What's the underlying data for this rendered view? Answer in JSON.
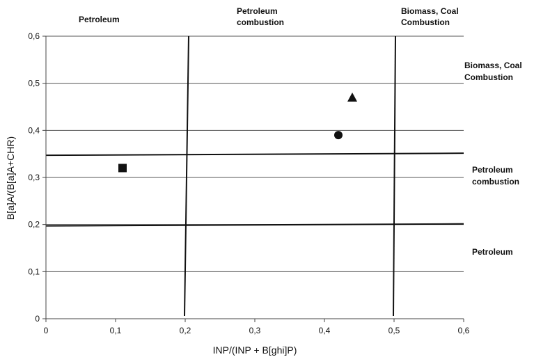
{
  "chart_data": {
    "type": "scatter",
    "title": "",
    "xlabel": "INP/(INP + B[ghi]P)",
    "ylabel": "B[a]A/(B[a]A+CHR)",
    "xlim": [
      0,
      0.6
    ],
    "ylim": [
      0,
      0.6
    ],
    "x_ticks": [
      "0",
      "0,1",
      "0,2",
      "0,3",
      "0,4",
      "0,5",
      "0,6"
    ],
    "y_ticks": [
      "0",
      "0,1",
      "0,2",
      "0,3",
      "0,4",
      "0,5",
      "0,6"
    ],
    "grid": true,
    "points": [
      {
        "marker": "square",
        "x": 0.11,
        "y": 0.32
      },
      {
        "marker": "circle",
        "x": 0.42,
        "y": 0.39
      },
      {
        "marker": "triangle",
        "x": 0.44,
        "y": 0.47
      }
    ],
    "threshold_lines": [
      {
        "orientation": "vertical",
        "value": 0.2
      },
      {
        "orientation": "vertical",
        "value": 0.5
      },
      {
        "orientation": "horizontal",
        "value": 0.2
      },
      {
        "orientation": "horizontal",
        "value": 0.35
      }
    ],
    "top_region_labels": [
      {
        "lines": [
          "Petroleum"
        ]
      },
      {
        "lines": [
          "Petroleum",
          "combustion"
        ]
      },
      {
        "lines": [
          "Biomass, Coal",
          "Combustion"
        ]
      }
    ],
    "right_region_labels": [
      {
        "lines": [
          "Biomass, Coal",
          "Combustion"
        ]
      },
      {
        "lines": [
          "Petroleum",
          "combustion"
        ]
      },
      {
        "lines": [
          "Petroleum"
        ]
      }
    ],
    "colors": {
      "marks": "#111111",
      "grid": "#555555",
      "lines": "#111111"
    }
  }
}
